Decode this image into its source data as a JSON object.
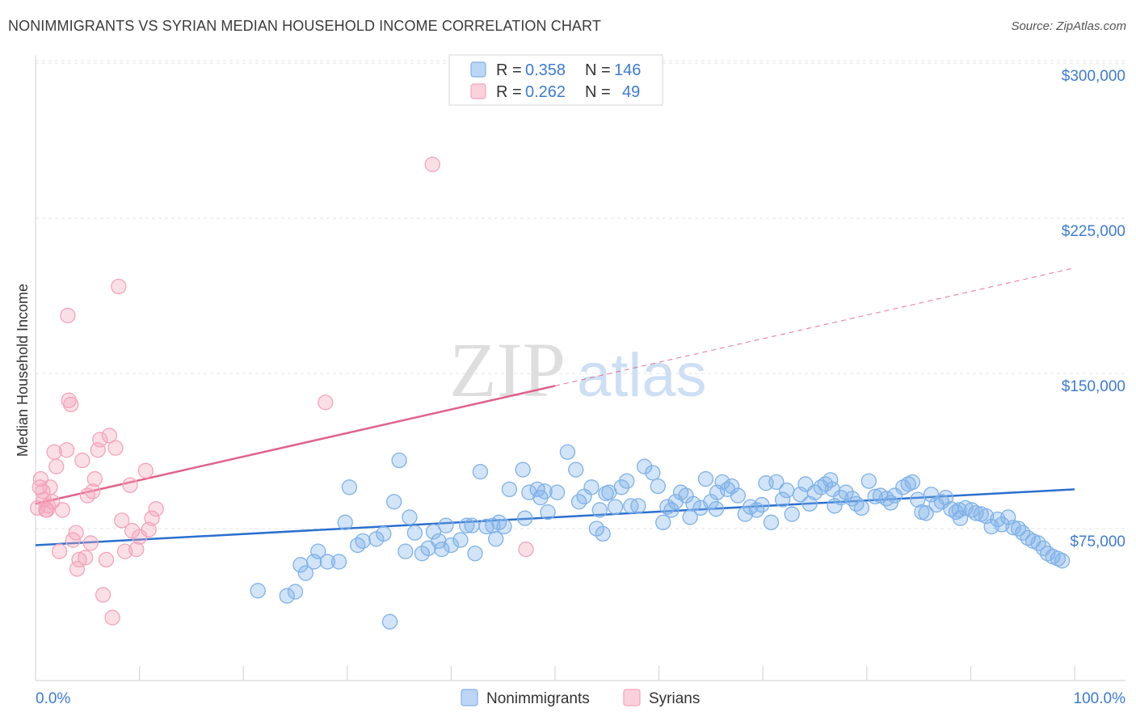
{
  "header": {
    "title": "NONIMMIGRANTS VS SYRIAN MEDIAN HOUSEHOLD INCOME CORRELATION CHART",
    "source": "Source: ZipAtlas.com"
  },
  "watermark": {
    "zip": "ZIP",
    "atlas": "atlas"
  },
  "legend": {
    "rows": [
      {
        "r_label": "R = ",
        "r_value": "0.358",
        "n_label": "N = ",
        "n_value": "146",
        "color": "#7fb1e8"
      },
      {
        "r_label": "R = ",
        "r_value": "0.262",
        "n_label": "N = ",
        "n_value": "49",
        "color": "#f4a3bb"
      }
    ]
  },
  "chart_data": {
    "type": "scatter",
    "title": "NONIMMIGRANTS VS SYRIAN MEDIAN HOUSEHOLD INCOME CORRELATION CHART",
    "xlabel": "",
    "ylabel": "Median Household Income",
    "xlim": [
      0,
      100
    ],
    "ylim": [
      0,
      315000
    ],
    "x_ticks_labels": [
      "0.0%",
      "100.0%"
    ],
    "y_ticks": [
      75000,
      150000,
      225000,
      300000
    ],
    "y_tick_labels": [
      "$75,000",
      "$150,000",
      "$225,000",
      "$300,000"
    ],
    "grid": true,
    "legend_position": "bottom",
    "series": [
      {
        "name": "Nonimmigrants",
        "color": "#7fb1e8",
        "line_color": "#2b6fce",
        "trend": {
          "x0": 0,
          "y0": 67000,
          "x1": 100,
          "y1": 94000
        },
        "points": [
          [
            21.4,
            45000
          ],
          [
            24.2,
            42500
          ],
          [
            25.0,
            44500
          ],
          [
            25.5,
            57500
          ],
          [
            26.0,
            53500
          ],
          [
            26.8,
            59000
          ],
          [
            27.2,
            64000
          ],
          [
            28.1,
            59000
          ],
          [
            29.2,
            59000
          ],
          [
            29.8,
            78000
          ],
          [
            30.2,
            95000
          ],
          [
            31.0,
            67000
          ],
          [
            31.5,
            69000
          ],
          [
            32.8,
            70000
          ],
          [
            33.5,
            72500
          ],
          [
            34.1,
            30000
          ],
          [
            34.5,
            88000
          ],
          [
            35.0,
            108000
          ],
          [
            35.6,
            64000
          ],
          [
            36.0,
            80500
          ],
          [
            36.5,
            73000
          ],
          [
            37.2,
            63000
          ],
          [
            37.8,
            65500
          ],
          [
            38.3,
            73500
          ],
          [
            38.8,
            69000
          ],
          [
            39.1,
            65000
          ],
          [
            39.5,
            76500
          ],
          [
            40.0,
            67000
          ],
          [
            40.9,
            69500
          ],
          [
            41.5,
            76500
          ],
          [
            42.0,
            76500
          ],
          [
            42.3,
            63000
          ],
          [
            42.8,
            102500
          ],
          [
            43.4,
            76000
          ],
          [
            44.0,
            76500
          ],
          [
            44.3,
            70000
          ],
          [
            44.6,
            78000
          ],
          [
            45.1,
            76000
          ],
          [
            45.6,
            94000
          ],
          [
            46.9,
            103500
          ],
          [
            47.1,
            80000
          ],
          [
            47.5,
            92500
          ],
          [
            48.3,
            94000
          ],
          [
            48.6,
            90000
          ],
          [
            49.0,
            93000
          ],
          [
            49.3,
            83000
          ],
          [
            50.2,
            92500
          ],
          [
            51.2,
            112000
          ],
          [
            52.0,
            103500
          ],
          [
            52.3,
            88000
          ],
          [
            52.8,
            90500
          ],
          [
            53.5,
            95000
          ],
          [
            54.0,
            75000
          ],
          [
            54.3,
            84000
          ],
          [
            54.6,
            72500
          ],
          [
            55.2,
            92500
          ],
          [
            55.8,
            85500
          ],
          [
            56.4,
            95000
          ],
          [
            56.9,
            98000
          ],
          [
            57.3,
            86000
          ],
          [
            58.0,
            86000
          ],
          [
            58.6,
            105000
          ],
          [
            59.4,
            102000
          ],
          [
            59.9,
            95500
          ],
          [
            60.4,
            78000
          ],
          [
            60.8,
            85500
          ],
          [
            61.2,
            84000
          ],
          [
            61.6,
            88000
          ],
          [
            62.1,
            92500
          ],
          [
            62.6,
            91000
          ],
          [
            63.0,
            80500
          ],
          [
            63.3,
            87000
          ],
          [
            64.0,
            85000
          ],
          [
            64.5,
            99000
          ],
          [
            65.0,
            88000
          ],
          [
            65.6,
            92500
          ],
          [
            66.1,
            97500
          ],
          [
            66.6,
            94000
          ],
          [
            67.0,
            95500
          ],
          [
            67.6,
            91000
          ],
          [
            68.3,
            82000
          ],
          [
            68.8,
            85500
          ],
          [
            69.4,
            84000
          ],
          [
            69.9,
            86500
          ],
          [
            70.3,
            97000
          ],
          [
            70.8,
            78000
          ],
          [
            71.3,
            97500
          ],
          [
            71.9,
            89000
          ],
          [
            72.3,
            93500
          ],
          [
            72.8,
            82000
          ],
          [
            73.6,
            91500
          ],
          [
            74.1,
            96500
          ],
          [
            74.5,
            87000
          ],
          [
            75.0,
            92500
          ],
          [
            75.6,
            95000
          ],
          [
            76.0,
            96500
          ],
          [
            76.5,
            98500
          ],
          [
            76.9,
            86000
          ],
          [
            77.5,
            90000
          ],
          [
            78.0,
            92500
          ],
          [
            78.6,
            89500
          ],
          [
            79.0,
            87000
          ],
          [
            79.5,
            85000
          ],
          [
            80.2,
            98000
          ],
          [
            80.8,
            90500
          ],
          [
            81.3,
            91000
          ],
          [
            81.9,
            89500
          ],
          [
            82.3,
            87500
          ],
          [
            82.7,
            91000
          ],
          [
            83.5,
            95000
          ],
          [
            84.0,
            96500
          ],
          [
            84.4,
            97500
          ],
          [
            84.9,
            89000
          ],
          [
            85.3,
            83000
          ],
          [
            85.7,
            82500
          ],
          [
            86.2,
            91500
          ],
          [
            86.7,
            86500
          ],
          [
            87.2,
            88000
          ],
          [
            87.6,
            90000
          ],
          [
            88.1,
            84500
          ],
          [
            88.6,
            83000
          ],
          [
            89.0,
            80000
          ],
          [
            89.5,
            85000
          ],
          [
            90.1,
            84000
          ],
          [
            90.5,
            82500
          ],
          [
            91.0,
            82000
          ],
          [
            91.5,
            81000
          ],
          [
            92.0,
            76000
          ],
          [
            92.6,
            79500
          ],
          [
            93.0,
            77000
          ],
          [
            93.6,
            80500
          ],
          [
            94.1,
            75500
          ],
          [
            94.6,
            75000
          ],
          [
            95.0,
            73000
          ],
          [
            95.5,
            70500
          ],
          [
            96.0,
            69000
          ],
          [
            96.5,
            68000
          ],
          [
            97.0,
            65500
          ],
          [
            97.4,
            63000
          ],
          [
            97.9,
            61500
          ],
          [
            98.4,
            60500
          ],
          [
            98.8,
            59500
          ],
          [
            65.5,
            84500
          ],
          [
            76.7,
            94000
          ],
          [
            88.9,
            84000
          ],
          [
            54.9,
            92000
          ]
        ]
      },
      {
        "name": "Syrians",
        "color": "#f4a3bb",
        "line_color": "#e0628a",
        "trend": {
          "x0": 0,
          "y0": 87000,
          "x1": 50,
          "y1": 144000
        },
        "trend_dashed": {
          "x0": 50,
          "y0": 144000,
          "x1": 100,
          "y1": 201000
        },
        "points": [
          [
            0.2,
            85000
          ],
          [
            0.4,
            95000
          ],
          [
            0.5,
            99000
          ],
          [
            0.7,
            93000
          ],
          [
            0.8,
            89000
          ],
          [
            1.0,
            84000
          ],
          [
            1.2,
            86000
          ],
          [
            1.4,
            95000
          ],
          [
            1.6,
            88000
          ],
          [
            1.8,
            112000
          ],
          [
            2.0,
            105000
          ],
          [
            2.3,
            64000
          ],
          [
            2.6,
            84000
          ],
          [
            3.0,
            113000
          ],
          [
            3.2,
            137000
          ],
          [
            3.4,
            135000
          ],
          [
            3.6,
            69500
          ],
          [
            3.9,
            73000
          ],
          [
            4.2,
            60000
          ],
          [
            4.5,
            108000
          ],
          [
            4.8,
            61000
          ],
          [
            5.0,
            91000
          ],
          [
            5.3,
            68000
          ],
          [
            5.5,
            93000
          ],
          [
            5.7,
            99000
          ],
          [
            6.0,
            113000
          ],
          [
            6.2,
            118000
          ],
          [
            6.5,
            43000
          ],
          [
            6.8,
            60000
          ],
          [
            7.1,
            120000
          ],
          [
            7.4,
            32000
          ],
          [
            7.7,
            114000
          ],
          [
            8.0,
            192000
          ],
          [
            8.3,
            79000
          ],
          [
            8.6,
            64000
          ],
          [
            9.1,
            96000
          ],
          [
            9.3,
            74000
          ],
          [
            9.7,
            65000
          ],
          [
            10.0,
            71000
          ],
          [
            10.6,
            103000
          ],
          [
            10.9,
            74500
          ],
          [
            11.2,
            80000
          ],
          [
            11.6,
            84500
          ],
          [
            3.1,
            178000
          ],
          [
            4.0,
            55500
          ],
          [
            27.9,
            136000
          ],
          [
            38.2,
            251000
          ],
          [
            47.2,
            65000
          ],
          [
            1.1,
            84000
          ]
        ]
      }
    ]
  },
  "bottom_legend": {
    "items": [
      {
        "label": "Nonimmigrants",
        "color": "#7fb1e8"
      },
      {
        "label": "Syrians",
        "color": "#f4a3bb"
      }
    ]
  }
}
